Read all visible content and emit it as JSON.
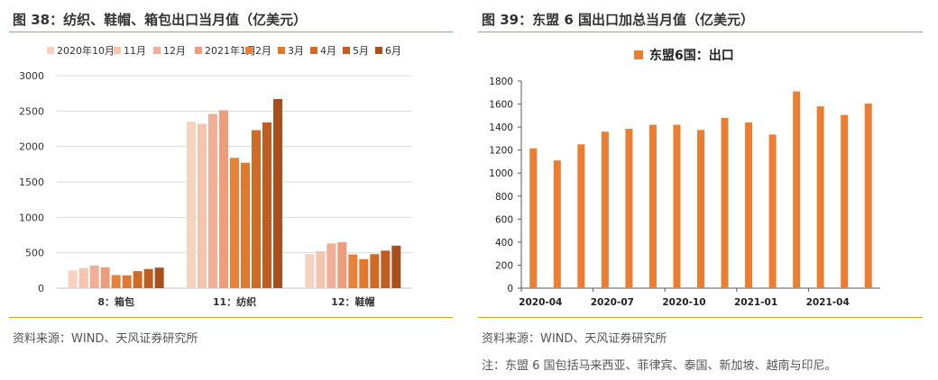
{
  "left_panel": {
    "title": "图 38：纺织、鞋帽、箱包出口当月值（亿美元）",
    "source": "资料来源：WIND、天风证券研究所"
  },
  "right_panel": {
    "title": "图 39：东盟 6 国出口加总当月值（亿美元）",
    "source": "资料来源：WIND、天风证券研究所",
    "note": "注：东盟 6 国包括马来西亚、菲律宾、泰国、新加坡、越南与印尼。"
  },
  "chart_data": [
    {
      "type": "bar",
      "categories": [
        "8：箱包",
        "11：纺织",
        "12：鞋帽"
      ],
      "series": [
        {
          "name": "2020年10月",
          "color": "#f6d2c1",
          "values": [
            250,
            2350,
            480
          ]
        },
        {
          "name": "11月",
          "color": "#f4c4ad",
          "values": [
            285,
            2320,
            520
          ]
        },
        {
          "name": "12月",
          "color": "#f1b095",
          "values": [
            320,
            2460,
            630
          ]
        },
        {
          "name": "2021年1月",
          "color": "#ee9d7c",
          "values": [
            295,
            2510,
            650
          ]
        },
        {
          "name": "2月",
          "color": "#e8823b",
          "values": [
            185,
            1840,
            475
          ]
        },
        {
          "name": "3月",
          "color": "#e0782f",
          "values": [
            180,
            1770,
            410
          ]
        },
        {
          "name": "4月",
          "color": "#d06a27",
          "values": [
            240,
            2230,
            480
          ]
        },
        {
          "name": "5月",
          "color": "#bf5d22",
          "values": [
            270,
            2340,
            530
          ]
        },
        {
          "name": "6月",
          "color": "#a84f1d",
          "values": [
            290,
            2670,
            600
          ]
        }
      ],
      "ylim": [
        0,
        3000
      ],
      "yticks": [
        "0",
        "500",
        "1000",
        "1500",
        "2000",
        "2500",
        "3000"
      ],
      "legend_position": "top"
    },
    {
      "type": "bar",
      "title": "东盟6国：出口",
      "x": [
        "2020-04",
        "2020-05",
        "2020-06",
        "2020-07",
        "2020-08",
        "2020-09",
        "2020-10",
        "2020-11",
        "2020-12",
        "2021-01",
        "2021-02",
        "2021-03",
        "2021-04",
        "2021-05",
        "2021-06"
      ],
      "xtick_labels": [
        "2020-04",
        "2020-07",
        "2020-10",
        "2021-01",
        "2021-04"
      ],
      "series": [
        {
          "name": "东盟6国：出口",
          "color": "#ed7d31",
          "values": [
            1215,
            1110,
            1250,
            1360,
            1385,
            1420,
            1420,
            1375,
            1480,
            1440,
            1335,
            1710,
            1580,
            1505,
            1605
          ]
        }
      ],
      "ylim": [
        0,
        1800
      ],
      "yticks": [
        "0",
        "200",
        "400",
        "600",
        "800",
        "1000",
        "1200",
        "1400",
        "1600",
        "1800"
      ]
    }
  ]
}
